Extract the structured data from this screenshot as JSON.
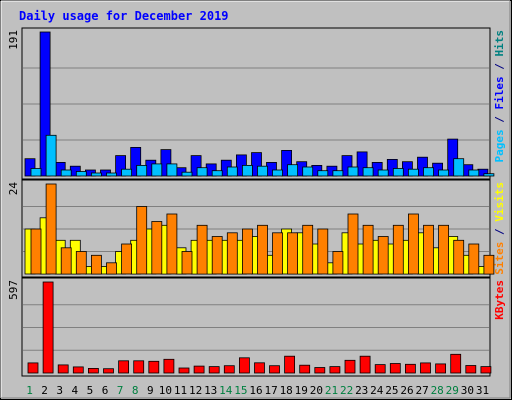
{
  "chart_data": {
    "type": "bar",
    "title": "Daily usage for December 2019",
    "categories": [
      "1",
      "2",
      "3",
      "4",
      "5",
      "6",
      "7",
      "8",
      "9",
      "10",
      "11",
      "12",
      "13",
      "14",
      "15",
      "16",
      "17",
      "18",
      "19",
      "20",
      "21",
      "22",
      "23",
      "24",
      "25",
      "26",
      "27",
      "28",
      "29",
      "30",
      "31"
    ],
    "weekend_days": [
      "1",
      "7",
      "8",
      "14",
      "15",
      "21",
      "22",
      "28",
      "29"
    ],
    "panels": [
      {
        "id": "hits-files",
        "max_label": "191",
        "ylim": [
          0,
          191
        ],
        "axis_label": [
          {
            "text": "Pages",
            "color": "#00c0ff"
          },
          {
            "text": " / ",
            "color": "#000080"
          },
          {
            "text": "Files",
            "color": "#0000ff"
          },
          {
            "text": " / ",
            "color": "#000080"
          },
          {
            "text": "Hits",
            "color": "#008080"
          }
        ],
        "series": [
          {
            "name": "Files",
            "color": "#0000ff",
            "values": [
              23,
              191,
              18,
              13,
              8,
              8,
              27,
              38,
              21,
              35,
              11,
              27,
              16,
              21,
              28,
              31,
              18,
              34,
              19,
              14,
              13,
              27,
              32,
              18,
              22,
              19,
              25,
              17,
              49,
              15,
              9
            ]
          },
          {
            "name": "Pages",
            "color": "#00c0ff",
            "values": [
              10,
              54,
              8,
              6,
              4,
              4,
              9,
              14,
              16,
              16,
              5,
              11,
              7,
              12,
              14,
              13,
              8,
              15,
              12,
              7,
              7,
              12,
              11,
              8,
              10,
              9,
              11,
              8,
              23,
              8,
              3
            ]
          }
        ]
      },
      {
        "id": "visits-sites",
        "max_label": "24",
        "ylim": [
          0,
          24
        ],
        "axis_label": [
          {
            "text": "Sites",
            "color": "#ff8000"
          },
          {
            "text": " / ",
            "color": "#000080"
          },
          {
            "text": "Visits",
            "color": "#ffff00"
          }
        ],
        "series": [
          {
            "name": "Visits",
            "color": "#ffff00",
            "values": [
              12,
              15,
              9,
              9,
              2,
              2,
              6,
              9,
              12,
              13,
              7,
              9,
              9,
              9,
              9,
              10,
              5,
              12,
              11,
              8,
              3,
              11,
              8,
              9,
              8,
              9,
              11,
              7,
              10,
              5,
              2
            ]
          },
          {
            "name": "Sites",
            "color": "#ff8000",
            "values": [
              12,
              24,
              7,
              6,
              5,
              3,
              8,
              18,
              14,
              16,
              6,
              13,
              10,
              11,
              12,
              13,
              11,
              11,
              13,
              12,
              6,
              16,
              13,
              10,
              13,
              16,
              13,
              13,
              9,
              8,
              5
            ]
          }
        ]
      },
      {
        "id": "kbytes",
        "max_label": "597",
        "ylim": [
          0,
          597
        ],
        "axis_label": [
          {
            "text": "KBytes",
            "color": "#ff0000"
          }
        ],
        "series": [
          {
            "name": "KBytes",
            "color": "#ff0000",
            "values": [
              66,
              597,
              53,
              40,
              30,
              28,
              80,
              80,
              77,
              90,
              33,
              45,
              42,
              48,
              100,
              67,
              48,
              110,
              51,
              36,
              42,
              83,
              110,
              55,
              62,
              57,
              66,
              60,
              123,
              49,
              42
            ]
          }
        ]
      }
    ]
  }
}
